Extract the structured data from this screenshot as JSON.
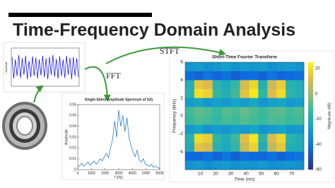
{
  "title": "Time-Frequency Domain Analysis",
  "arrows": {
    "fft": "FFT",
    "stft": "STFT"
  },
  "time_signal": {
    "type": "line",
    "y_label": "Amplitude",
    "color": "#0000ee",
    "ylim": [
      -1.5,
      1.5
    ],
    "values": [
      0.8,
      -0.9,
      0.6,
      -0.7,
      0.95,
      -0.85,
      0.7,
      -0.6,
      0.9,
      -0.95,
      0.5,
      -0.8,
      0.85,
      -0.7,
      0.75,
      -0.9,
      0.6,
      -0.65,
      0.9,
      -0.8,
      0.7,
      -0.95,
      0.8,
      -0.6,
      0.95,
      -0.75,
      0.65,
      -0.9,
      0.85,
      -0.7,
      0.6,
      -0.85,
      0.9,
      -0.6,
      0.75,
      -0.95,
      0.8,
      -0.7,
      0.7,
      -0.8
    ]
  },
  "spectrum": {
    "type": "line",
    "title": "Single-Sided Amplitude Spectrum of X(t)",
    "x_label": "f (Hz)",
    "y_label": "Amplitude",
    "color": "#2a7cc7",
    "x": [
      0,
      150,
      300,
      450,
      600,
      750,
      900,
      1050,
      1200,
      1350,
      1500,
      1650,
      1800,
      1950,
      2100,
      2250,
      2400,
      2550,
      2700,
      2850,
      3000,
      3150,
      3300,
      3450,
      3600,
      3750,
      3900,
      4050,
      4200,
      4350,
      4500,
      4650,
      4800,
      4950,
      5100,
      5250,
      5400,
      5550,
      5700,
      5850,
      6000
    ],
    "values": [
      0.002,
      0.004,
      0.006,
      0.003,
      0.005,
      0.007,
      0.004,
      0.006,
      0.008,
      0.005,
      0.007,
      0.01,
      0.008,
      0.012,
      0.015,
      0.011,
      0.02,
      0.028,
      0.045,
      0.03,
      0.055,
      0.04,
      0.05,
      0.035,
      0.048,
      0.03,
      0.022,
      0.016,
      0.012,
      0.018,
      0.009,
      0.007,
      0.01,
      0.005,
      0.004,
      0.003,
      0.005,
      0.002,
      0.003,
      0.002,
      0.001
    ],
    "xlim": [
      0,
      6000
    ],
    "ylim": [
      0,
      0.06
    ],
    "xticks": [
      0,
      1000,
      2000,
      3000,
      4000,
      5000,
      6000
    ],
    "yticks": [
      0,
      0.01,
      0.02,
      0.03,
      0.04,
      0.05,
      0.06
    ]
  },
  "spectrogram": {
    "type": "heatmap",
    "title": "Short-Time Fourier Transform",
    "x_label": "Time (ms)",
    "y_label": "Frequency (kHz)",
    "colorbar_label": "Magnitude (dB)",
    "x": [
      3,
      9,
      15,
      21,
      27,
      33,
      39,
      45,
      51,
      57,
      63,
      69,
      75
    ],
    "y": [
      5.5,
      4.5,
      3.5,
      2.5,
      1.5,
      0.5,
      -0.5,
      -1.5,
      -2.5,
      -3.5,
      -4.5,
      -5.5
    ],
    "z": [
      [
        -30,
        -28,
        -32,
        -30,
        -27,
        -31,
        -29,
        -30,
        -28,
        -32,
        -30,
        -29,
        -31
      ],
      [
        -42,
        -45,
        -40,
        -44,
        -41,
        -46,
        -43,
        -42,
        -45,
        -40,
        -44,
        -43,
        -41
      ],
      [
        -20,
        15,
        12,
        -18,
        -22,
        -15,
        10,
        18,
        -20,
        8,
        16,
        -19,
        -21
      ],
      [
        -18,
        20,
        17,
        -15,
        -20,
        -12,
        14,
        22,
        -17,
        12,
        19,
        -16,
        -20
      ],
      [
        -28,
        -25,
        -30,
        -27,
        -29,
        -26,
        -28,
        -24,
        -30,
        -27,
        -25,
        -29,
        -28
      ],
      [
        -12,
        -8,
        -10,
        -14,
        -9,
        -11,
        -7,
        -10,
        -13,
        -9,
        -8,
        -12,
        -10
      ],
      [
        -14,
        -10,
        -12,
        -15,
        -11,
        -13,
        -9,
        -12,
        -14,
        -10,
        -11,
        -13,
        -12
      ],
      [
        -29,
        -26,
        -31,
        -28,
        -30,
        -27,
        -29,
        -25,
        -31,
        -28,
        -26,
        -30,
        -29
      ],
      [
        -19,
        19,
        16,
        -16,
        -21,
        -13,
        13,
        21,
        -18,
        11,
        18,
        -17,
        -21
      ],
      [
        -21,
        14,
        11,
        -19,
        -23,
        -16,
        9,
        17,
        -21,
        7,
        15,
        -20,
        -22
      ],
      [
        -43,
        -44,
        -41,
        -45,
        -40,
        -46,
        -42,
        -43,
        -44,
        -41,
        -45,
        -42,
        -40
      ],
      [
        -31,
        -29,
        -33,
        -30,
        -28,
        -32,
        -30,
        -31,
        -29,
        -33,
        -31,
        -30,
        -32
      ]
    ],
    "xlim": [
      0,
      78
    ],
    "ylim": [
      -6,
      6
    ],
    "clim": [
      -60,
      25
    ],
    "xticks": [
      10,
      20,
      30,
      40,
      50,
      60,
      70
    ],
    "yticks": [
      -4,
      -2,
      0,
      2,
      4,
      6
    ],
    "cticks": [
      -60,
      -40,
      -20,
      0,
      20
    ]
  }
}
